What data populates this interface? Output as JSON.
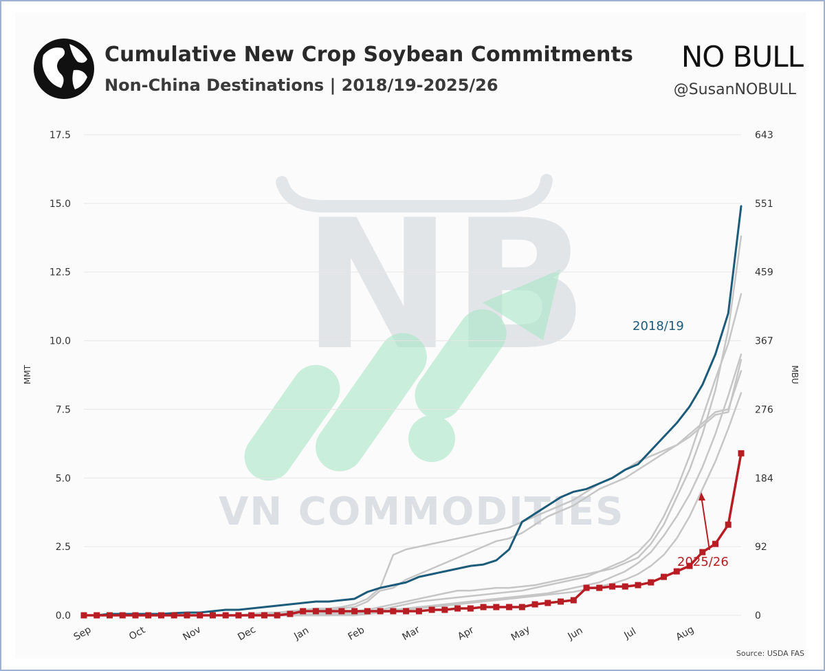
{
  "header": {
    "title": "Cumulative New Crop Soybean Commitments",
    "subtitle": "Non-China Destinations | 2018/19-2025/26",
    "brand": "NO BULL",
    "handle": "@SusanNOBULL",
    "globe_icon": "globe-icon"
  },
  "watermark": {
    "text": "VN COMMODITIES",
    "logo_letters": "NB"
  },
  "source": "Source: USDA FAS",
  "colors": {
    "highlight_2018_19": "#1d5b7a",
    "highlight_2025_26": "#b81d24",
    "other_years": "#c6c6c6",
    "grid": "#e6e6e6",
    "watermark_green": "#a8e6c8"
  },
  "chart_data": {
    "type": "line",
    "title": "Cumulative New Crop Soybean Commitments",
    "subtitle": "Non-China Destinations | 2018/19-2025/26",
    "ylabel": "MMT",
    "y2label": "MBU",
    "ylim": [
      0,
      17.5
    ],
    "y_ticks": [
      "0.0",
      "2.5",
      "5.0",
      "7.5",
      "10.0",
      "12.5",
      "15.0",
      "17.5"
    ],
    "y2_ticks": [
      "0",
      "92",
      "184",
      "276",
      "367",
      "459",
      "551",
      "643"
    ],
    "x_ticks": [
      "Sep",
      "Oct",
      "Nov",
      "Dec",
      "Jan",
      "Feb",
      "Mar",
      "Apr",
      "May",
      "Jun",
      "Jul",
      "Aug"
    ],
    "x_unit": "week of marketing year (52 weekly points, Sep–Aug)",
    "grid": "horizontal",
    "annotations": [
      {
        "text": "2018/19",
        "series": "2018/19"
      },
      {
        "text": "2025/26",
        "series": "2025/26",
        "arrow": true
      }
    ],
    "series": [
      {
        "name": "2018/19",
        "role": "highlight",
        "values": [
          0,
          0,
          0.05,
          0.05,
          0.05,
          0.05,
          0.05,
          0.08,
          0.1,
          0.1,
          0.15,
          0.2,
          0.2,
          0.25,
          0.3,
          0.35,
          0.4,
          0.45,
          0.5,
          0.5,
          0.55,
          0.6,
          0.85,
          1.0,
          1.1,
          1.2,
          1.4,
          1.5,
          1.6,
          1.7,
          1.8,
          1.85,
          2.0,
          2.4,
          3.4,
          3.7,
          4.0,
          4.3,
          4.5,
          4.6,
          4.8,
          5.0,
          5.3,
          5.5,
          6.0,
          6.5,
          7.0,
          7.6,
          8.4,
          9.5,
          11.0,
          14.9
        ]
      },
      {
        "name": "2025/26",
        "role": "highlight",
        "values": [
          0,
          0,
          0,
          0,
          0,
          0,
          0,
          0,
          0,
          0,
          0,
          0,
          0,
          0,
          0,
          0,
          0.05,
          0.15,
          0.15,
          0.15,
          0.15,
          0.15,
          0.15,
          0.15,
          0.15,
          0.15,
          0.15,
          0.2,
          0.2,
          0.25,
          0.25,
          0.3,
          0.3,
          0.3,
          0.3,
          0.4,
          0.45,
          0.5,
          0.55,
          1.0,
          1.0,
          1.05,
          1.05,
          1.1,
          1.2,
          1.4,
          1.6,
          1.8,
          2.3,
          2.6,
          3.3,
          5.9
        ]
      },
      {
        "role": "background",
        "values": [
          0,
          0,
          0,
          0,
          0,
          0,
          0,
          0,
          0,
          0,
          0,
          0,
          0,
          0.05,
          0.1,
          0.1,
          0.15,
          0.2,
          0.25,
          0.25,
          0.3,
          0.4,
          0.6,
          1.0,
          2.2,
          2.4,
          2.5,
          2.6,
          2.7,
          2.8,
          2.9,
          3.0,
          3.1,
          3.2,
          3.4,
          3.6,
          3.8,
          4.0,
          4.2,
          4.5,
          4.8,
          5.0,
          5.3,
          5.6,
          5.8,
          6.0,
          6.2,
          6.5,
          6.9,
          7.3,
          7.4,
          9.3
        ]
      },
      {
        "role": "background",
        "values": [
          0,
          0,
          0,
          0,
          0,
          0,
          0,
          0,
          0,
          0,
          0,
          0,
          0,
          0,
          0.05,
          0.05,
          0.1,
          0.15,
          0.2,
          0.2,
          0.25,
          0.3,
          0.5,
          0.9,
          1.0,
          1.3,
          1.5,
          1.7,
          1.9,
          2.1,
          2.3,
          2.5,
          2.7,
          2.8,
          3.0,
          3.3,
          3.6,
          3.8,
          4.0,
          4.3,
          4.6,
          4.8,
          5.0,
          5.3,
          5.6,
          5.9,
          6.2,
          6.6,
          7.0,
          7.4,
          7.5,
          8.9
        ]
      },
      {
        "role": "background",
        "values": [
          0,
          0,
          0,
          0,
          0,
          0,
          0,
          0,
          0,
          0,
          0,
          0,
          0,
          0,
          0,
          0,
          0,
          0.05,
          0.05,
          0.1,
          0.1,
          0.15,
          0.2,
          0.3,
          0.4,
          0.5,
          0.6,
          0.7,
          0.8,
          0.9,
          0.9,
          0.95,
          1.0,
          1.0,
          1.05,
          1.1,
          1.2,
          1.3,
          1.4,
          1.5,
          1.6,
          1.7,
          1.9,
          2.1,
          2.6,
          3.3,
          4.3,
          5.3,
          6.6,
          8.2,
          10.4,
          13.8
        ]
      },
      {
        "role": "background",
        "values": [
          0,
          0,
          0,
          0,
          0,
          0,
          0,
          0,
          0,
          0,
          0,
          0,
          0,
          0,
          0,
          0,
          0,
          0,
          0.05,
          0.05,
          0.1,
          0.1,
          0.15,
          0.2,
          0.3,
          0.4,
          0.5,
          0.55,
          0.6,
          0.65,
          0.7,
          0.75,
          0.8,
          0.85,
          0.9,
          1.0,
          1.1,
          1.2,
          1.3,
          1.4,
          1.6,
          1.8,
          2.0,
          2.3,
          2.8,
          3.6,
          4.6,
          5.8,
          7.2,
          8.6,
          9.9,
          11.7
        ]
      },
      {
        "role": "background",
        "values": [
          0,
          0,
          0,
          0,
          0,
          0,
          0,
          0,
          0,
          0,
          0,
          0,
          0,
          0,
          0,
          0,
          0,
          0,
          0,
          0,
          0.05,
          0.05,
          0.1,
          0.15,
          0.2,
          0.25,
          0.3,
          0.35,
          0.4,
          0.45,
          0.5,
          0.55,
          0.6,
          0.65,
          0.7,
          0.75,
          0.8,
          0.9,
          1.0,
          1.1,
          1.2,
          1.4,
          1.6,
          1.9,
          2.3,
          2.9,
          3.6,
          4.4,
          5.4,
          6.6,
          8.0,
          9.5
        ]
      },
      {
        "role": "background",
        "values": [
          0,
          0,
          0,
          0,
          0,
          0,
          0,
          0,
          0,
          0,
          0,
          0,
          0,
          0,
          0,
          0,
          0,
          0,
          0,
          0,
          0,
          0,
          0.05,
          0.1,
          0.15,
          0.2,
          0.25,
          0.3,
          0.35,
          0.4,
          0.45,
          0.5,
          0.55,
          0.6,
          0.65,
          0.7,
          0.75,
          0.8,
          0.85,
          0.95,
          1.05,
          1.15,
          1.3,
          1.5,
          1.8,
          2.2,
          2.8,
          3.6,
          4.6,
          5.6,
          6.8,
          8.1
        ]
      }
    ]
  }
}
